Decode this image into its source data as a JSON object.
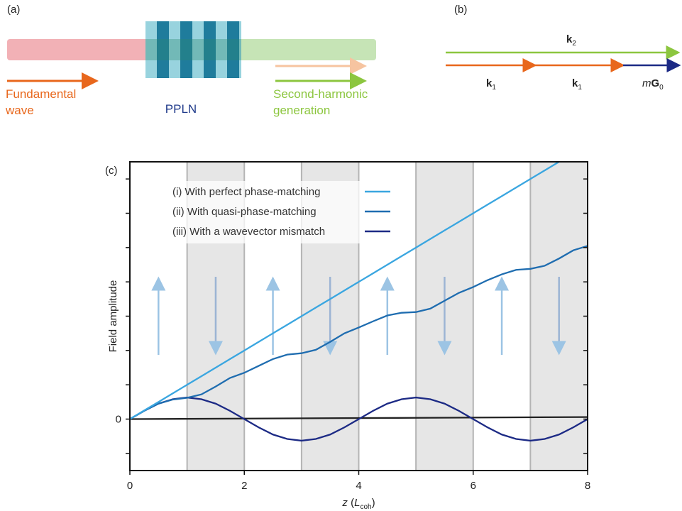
{
  "panel_a": {
    "label": "(a)",
    "fundamental": [
      "Fundamental",
      "wave"
    ],
    "crystal": "PPLN",
    "harmonic": [
      "Second-harmonic",
      "generation"
    ]
  },
  "panel_b": {
    "label": "(b)",
    "k2": {
      "symbol": "k",
      "subscript": "2"
    },
    "k1_first": {
      "symbol": "k",
      "subscript": "1"
    },
    "k1_second": {
      "symbol": "k",
      "subscript": "1"
    },
    "grating": {
      "prefix": "m",
      "symbol": "G",
      "subscript": "0"
    }
  },
  "chart_data": {
    "type": "line",
    "panel_label": "(c)",
    "ylabel": "Field amplitude",
    "xlabel_parts": [
      "z",
      " (",
      "L",
      "coh",
      ")"
    ],
    "x": [
      0,
      0.25,
      0.5,
      0.75,
      1,
      1.25,
      1.5,
      1.75,
      2,
      2.25,
      2.5,
      2.75,
      3,
      3.25,
      3.5,
      3.75,
      4,
      4.25,
      4.5,
      4.75,
      5,
      5.25,
      5.5,
      5.75,
      6,
      6.25,
      6.5,
      6.75,
      7,
      7.25,
      7.5,
      7.75,
      8
    ],
    "series": [
      {
        "name": "(i) With perfect phase-matching",
        "color": "#3aa6e0",
        "values": [
          0,
          0.25,
          0.5,
          0.75,
          1,
          1.25,
          1.5,
          1.75,
          2,
          2.25,
          2.5,
          2.75,
          3,
          3.25,
          3.5,
          3.75,
          4,
          4.25,
          4.5,
          4.75,
          5,
          5.25,
          5.5,
          5.75,
          6,
          6.25,
          6.5,
          6.75,
          7,
          7.25,
          7.5,
          null,
          null
        ]
      },
      {
        "name": "(ii) With quasi-phase-matching",
        "color": "#1f6db0",
        "values": [
          0,
          0.24,
          0.45,
          0.57,
          0.62,
          0.72,
          0.95,
          1.2,
          1.35,
          1.55,
          1.75,
          1.88,
          1.92,
          2.02,
          2.25,
          2.5,
          2.67,
          2.85,
          3.02,
          3.1,
          3.12,
          3.22,
          3.45,
          3.68,
          3.85,
          4.05,
          4.22,
          4.35,
          4.38,
          4.47,
          4.68,
          4.92,
          5.05
        ]
      },
      {
        "name": "(iii) With a wavevector mismatch",
        "color": "#1c2a85",
        "values": [
          0,
          0.24,
          0.45,
          0.58,
          0.63,
          0.58,
          0.45,
          0.24,
          0,
          -0.24,
          -0.45,
          -0.58,
          -0.63,
          -0.58,
          -0.45,
          -0.24,
          0,
          0.24,
          0.45,
          0.58,
          0.63,
          0.58,
          0.45,
          0.24,
          0,
          -0.24,
          -0.45,
          -0.58,
          -0.63,
          -0.58,
          -0.45,
          -0.24,
          0
        ]
      }
    ],
    "reference_line": {
      "x": [
        0,
        8
      ],
      "values": [
        0,
        0.06
      ],
      "color": "#222222"
    },
    "shaded_regions": [
      [
        1,
        2
      ],
      [
        3,
        4
      ],
      [
        5,
        6
      ],
      [
        7,
        8
      ]
    ],
    "xlim": [
      0,
      8
    ],
    "xticks": [
      0,
      2,
      4,
      6,
      8
    ],
    "ylim": [
      -1.5,
      7.5
    ],
    "yticks": [
      0
    ],
    "y_minor_ticks": [
      -1,
      1,
      2,
      3,
      4,
      5,
      6,
      7
    ],
    "legend": "upper left"
  }
}
